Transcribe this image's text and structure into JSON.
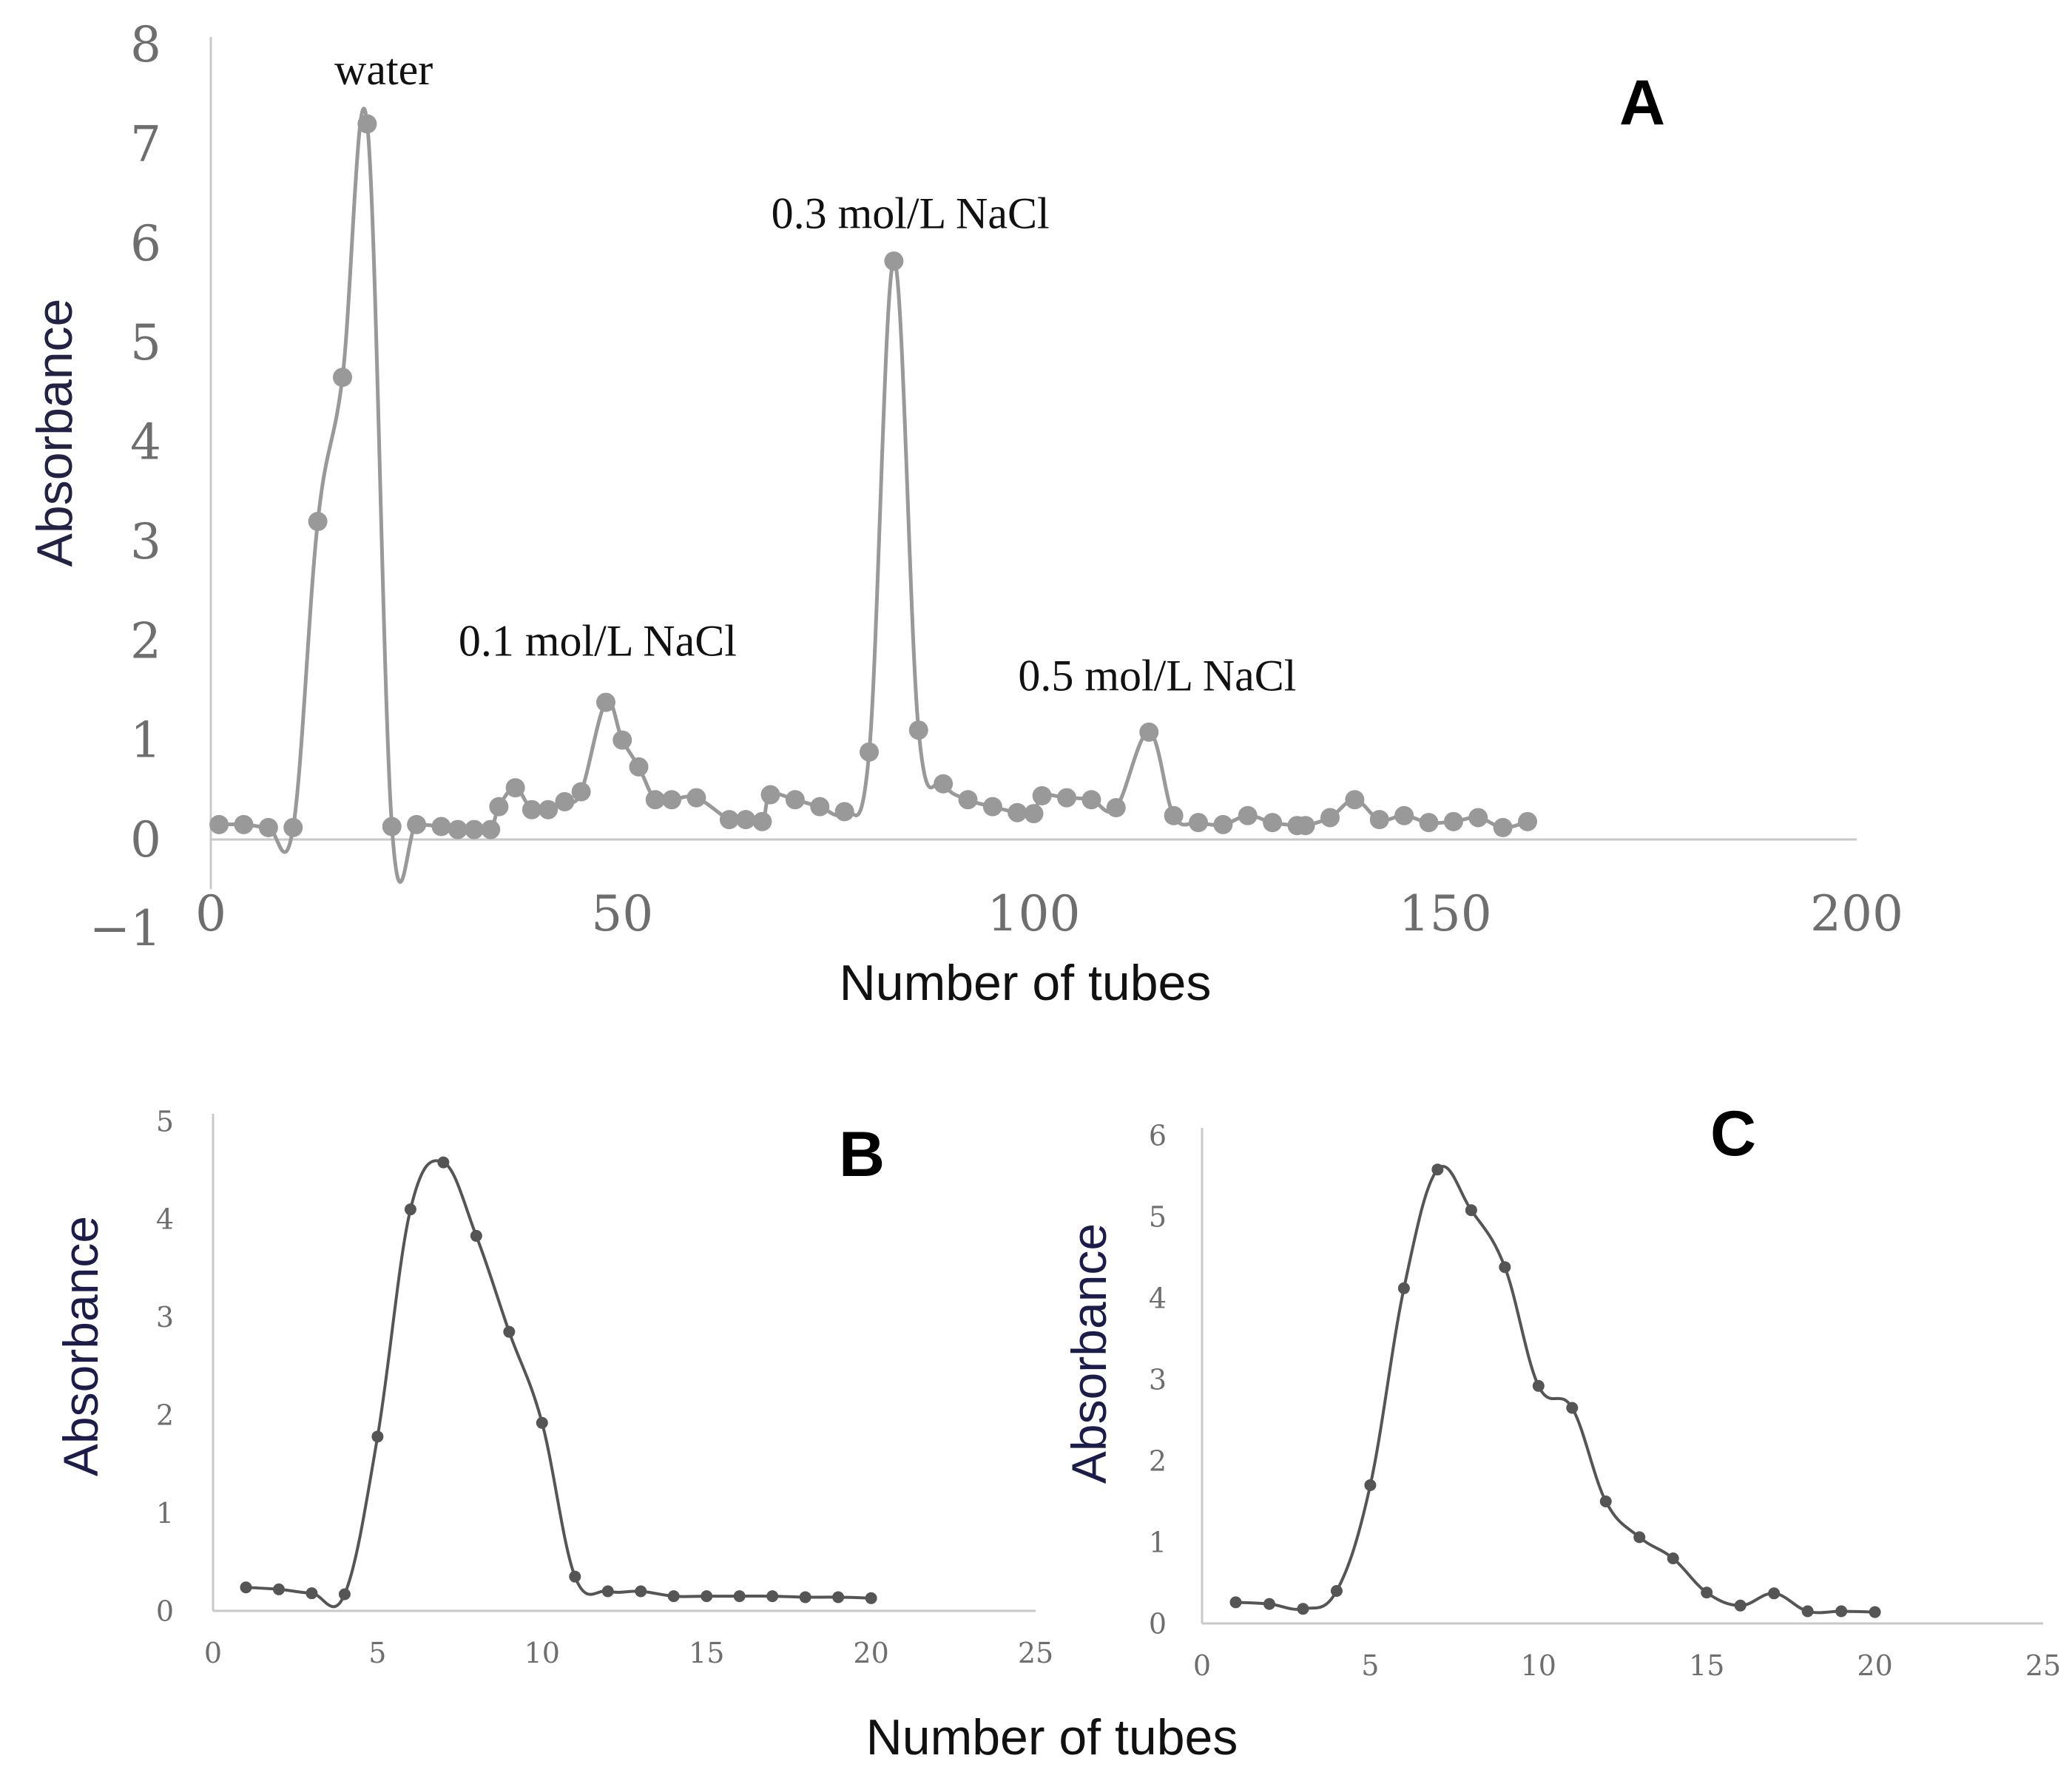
{
  "colors": {
    "panel_a_series": "#999999",
    "panel_bc_series": "#555555",
    "axis_line": "#c8c8c8",
    "axis_title_a": "#222244",
    "ylabel": "#1c1c4a"
  },
  "shared_xlabel": "Number of tubes",
  "chart_data": [
    {
      "id": "A",
      "type": "line",
      "panel_label": "A",
      "xlabel": "Number of tubes",
      "ylabel": "Absorbance",
      "xlim": [
        0,
        200
      ],
      "ylim": [
        -1,
        8
      ],
      "xticks": [
        0,
        50,
        100,
        150,
        200
      ],
      "yticks": [
        -1,
        0,
        1,
        2,
        3,
        4,
        5,
        6,
        7,
        8
      ],
      "ytick_labels": [
        "−1",
        "0",
        "1",
        "2",
        "3",
        "4",
        "5",
        "6",
        "7",
        "8"
      ],
      "grid": false,
      "annotations": [
        {
          "text": "water",
          "x": 21,
          "y": 7.6
        },
        {
          "text": "0.1 mol/L NaCl",
          "x": 47,
          "y": 1.85
        },
        {
          "text": "0.3 mol/L NaCl",
          "x": 85,
          "y": 6.15
        },
        {
          "text": "0.5 mol/L NaCl",
          "x": 115,
          "y": 1.5
        }
      ],
      "series": [
        {
          "name": "A",
          "x": [
            1,
            4,
            7,
            10,
            13,
            16,
            19,
            22,
            25,
            28,
            30,
            32,
            34,
            35,
            37,
            39,
            41,
            43,
            45,
            48,
            50,
            52,
            54,
            56,
            59,
            63,
            65,
            67,
            68,
            71,
            74,
            77,
            80,
            83,
            86,
            89,
            92,
            95,
            98,
            100,
            101,
            104,
            107,
            110,
            114,
            117,
            120,
            123,
            126,
            129,
            132,
            133,
            136,
            139,
            142,
            145,
            148,
            151,
            154,
            157,
            160
          ],
          "values": [
            0.15,
            0.15,
            0.12,
            0.12,
            3.2,
            4.65,
            7.2,
            0.13,
            0.15,
            0.13,
            0.1,
            0.1,
            0.1,
            0.33,
            0.52,
            0.3,
            0.3,
            0.38,
            0.48,
            1.38,
            1.0,
            0.73,
            0.4,
            0.4,
            0.42,
            0.2,
            0.2,
            0.18,
            0.45,
            0.4,
            0.33,
            0.28,
            0.88,
            5.82,
            1.1,
            0.56,
            0.4,
            0.33,
            0.27,
            0.26,
            0.44,
            0.42,
            0.4,
            0.32,
            1.08,
            0.24,
            0.17,
            0.15,
            0.24,
            0.17,
            0.14,
            0.14,
            0.22,
            0.4,
            0.2,
            0.24,
            0.17,
            0.18,
            0.22,
            0.12,
            0.18
          ]
        }
      ]
    },
    {
      "id": "B",
      "type": "line",
      "panel_label": "B",
      "xlabel": "Number of tubes",
      "ylabel": "Absorbance",
      "xlim": [
        0,
        25
      ],
      "ylim": [
        0,
        5
      ],
      "xticks": [
        0,
        5,
        10,
        15,
        20,
        25
      ],
      "yticks": [
        0,
        1,
        2,
        3,
        4,
        5
      ],
      "grid": false,
      "series": [
        {
          "name": "B",
          "x": [
            1,
            2,
            3,
            4,
            5,
            6,
            7,
            8,
            9,
            10,
            11,
            12,
            13,
            14,
            15,
            16,
            17,
            18,
            19,
            20
          ],
          "values": [
            0.24,
            0.22,
            0.18,
            0.17,
            1.78,
            4.1,
            4.58,
            3.83,
            2.85,
            1.92,
            0.35,
            0.2,
            0.2,
            0.15,
            0.15,
            0.15,
            0.15,
            0.14,
            0.14,
            0.13
          ]
        }
      ]
    },
    {
      "id": "C",
      "type": "line",
      "panel_label": "C",
      "xlabel": "Number of tubes",
      "ylabel": "Absorbance",
      "xlim": [
        0,
        25
      ],
      "ylim": [
        0,
        6
      ],
      "xticks": [
        0,
        5,
        10,
        15,
        20,
        25
      ],
      "yticks": [
        0,
        1,
        2,
        3,
        4,
        5,
        6
      ],
      "grid": false,
      "series": [
        {
          "name": "C",
          "x": [
            1,
            2,
            3,
            4,
            5,
            6,
            7,
            8,
            9,
            10,
            11,
            12,
            13,
            14,
            15,
            16,
            17,
            18,
            19,
            20
          ],
          "values": [
            0.26,
            0.24,
            0.18,
            0.4,
            1.7,
            4.12,
            5.58,
            5.08,
            4.38,
            2.92,
            2.65,
            1.5,
            1.06,
            0.8,
            0.38,
            0.22,
            0.37,
            0.15,
            0.15,
            0.14
          ]
        }
      ]
    }
  ]
}
